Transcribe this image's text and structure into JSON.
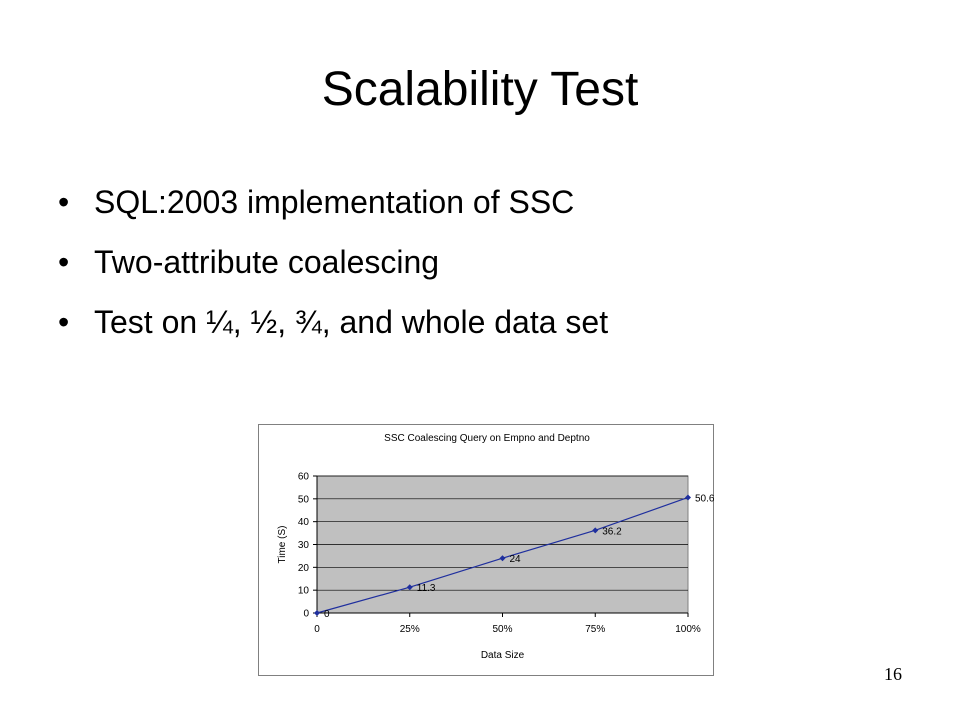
{
  "slide": {
    "title": "Scalability Test",
    "bullets": [
      "SQL:2003 implementation of SSC",
      "Two-attribute coalescing",
      "Test on ¼, ½, ¾, and whole data set"
    ],
    "bullet_symbol": "•",
    "page_number": "16"
  },
  "chart_data": {
    "type": "line",
    "title": "SSC Coalescing Query on Empno and Deptno",
    "xlabel": "Data Size",
    "ylabel": "Time (S)",
    "categories": [
      "0",
      "25%",
      "50%",
      "75%",
      "100%"
    ],
    "series": [
      {
        "values": [
          0,
          11.3,
          24,
          36.2,
          50.6
        ],
        "color": "#1f2f9e"
      }
    ],
    "data_labels": [
      "0",
      "11.3",
      "24",
      "36.2",
      "50.6"
    ],
    "ylim": [
      0,
      60
    ],
    "yticks": [
      0,
      10,
      20,
      30,
      40,
      50,
      60
    ],
    "grid": true,
    "plot_background": "#c0c0c0",
    "legend": "none"
  }
}
